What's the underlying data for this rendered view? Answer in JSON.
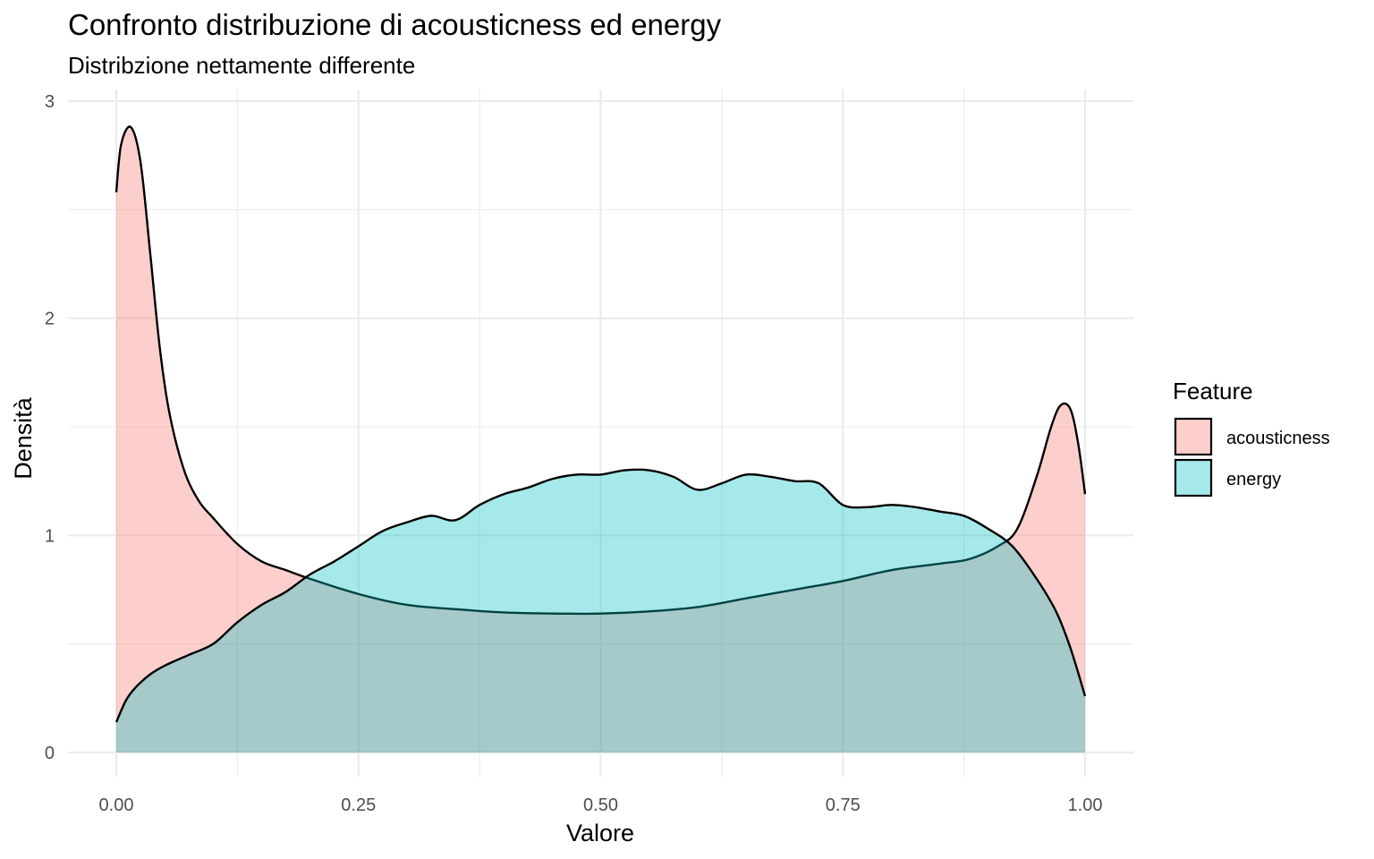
{
  "chart_data": {
    "type": "area",
    "title": "Confronto distribuzione di acousticness ed energy",
    "subtitle": "Distribzione nettamente differente",
    "xlabel": "Valore",
    "ylabel": "Densità",
    "xlim": [
      0,
      1
    ],
    "ylim": [
      0,
      3
    ],
    "x_ticks": [
      "0.00",
      "0.25",
      "0.50",
      "0.75",
      "1.00"
    ],
    "y_ticks": [
      "0",
      "1",
      "2",
      "3"
    ],
    "grid": true,
    "legend": {
      "title": "Feature",
      "position": "right"
    },
    "series": [
      {
        "name": "acousticness",
        "color": "#F8766D",
        "x": [
          0,
          0.005,
          0.015,
          0.025,
          0.035,
          0.045,
          0.055,
          0.07,
          0.085,
          0.1,
          0.125,
          0.15,
          0.175,
          0.2,
          0.25,
          0.3,
          0.35,
          0.4,
          0.45,
          0.5,
          0.55,
          0.6,
          0.65,
          0.7,
          0.75,
          0.8,
          0.85,
          0.88,
          0.91,
          0.93,
          0.95,
          0.965,
          0.975,
          0.985,
          0.993,
          1.0
        ],
        "values": [
          2.58,
          2.8,
          2.88,
          2.72,
          2.3,
          1.86,
          1.56,
          1.3,
          1.16,
          1.08,
          0.96,
          0.88,
          0.84,
          0.8,
          0.73,
          0.68,
          0.66,
          0.645,
          0.64,
          0.64,
          0.65,
          0.67,
          0.71,
          0.75,
          0.79,
          0.84,
          0.87,
          0.89,
          0.95,
          1.03,
          1.27,
          1.5,
          1.6,
          1.58,
          1.42,
          1.19
        ]
      },
      {
        "name": "energy",
        "color": "#00BFC4",
        "x": [
          0,
          0.01,
          0.02,
          0.035,
          0.05,
          0.075,
          0.1,
          0.125,
          0.15,
          0.175,
          0.2,
          0.225,
          0.25,
          0.275,
          0.3,
          0.325,
          0.35,
          0.375,
          0.4,
          0.425,
          0.45,
          0.475,
          0.5,
          0.525,
          0.55,
          0.575,
          0.6,
          0.625,
          0.65,
          0.675,
          0.7,
          0.725,
          0.75,
          0.775,
          0.8,
          0.825,
          0.85,
          0.875,
          0.9,
          0.925,
          0.95,
          0.97,
          0.985,
          1.0
        ],
        "values": [
          0.14,
          0.24,
          0.3,
          0.36,
          0.4,
          0.45,
          0.5,
          0.6,
          0.68,
          0.74,
          0.82,
          0.88,
          0.95,
          1.02,
          1.06,
          1.09,
          1.07,
          1.14,
          1.19,
          1.22,
          1.26,
          1.28,
          1.28,
          1.3,
          1.3,
          1.27,
          1.21,
          1.24,
          1.28,
          1.27,
          1.25,
          1.24,
          1.14,
          1.13,
          1.14,
          1.13,
          1.11,
          1.09,
          1.03,
          0.95,
          0.8,
          0.65,
          0.48,
          0.26
        ]
      }
    ]
  }
}
